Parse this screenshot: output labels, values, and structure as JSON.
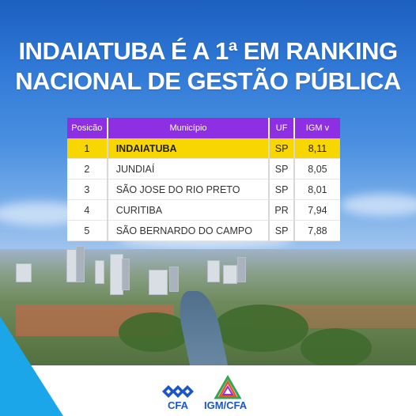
{
  "headline": {
    "line1": "INDAIATUBA É A 1ª EM RANKING",
    "line2": "NACIONAL DE GESTÃO PÚBLICA"
  },
  "table": {
    "headers": {
      "position": "Posicão",
      "municipality": "Município",
      "uf": "UF",
      "igm": "IGM  v"
    },
    "rows": [
      {
        "position": "1",
        "municipality": "INDAIATUBA",
        "uf": "SP",
        "igm": "8,11"
      },
      {
        "position": "2",
        "municipality": "JUNDIAÍ",
        "uf": "SP",
        "igm": "8,05"
      },
      {
        "position": "3",
        "municipality": "SÃO JOSE DO RIO PRETO",
        "uf": "SP",
        "igm": "8,01"
      },
      {
        "position": "4",
        "municipality": "CURITIBA",
        "uf": "PR",
        "igm": "7,94"
      },
      {
        "position": "5",
        "municipality": "SÃO BERNARDO DO CAMPO",
        "uf": "SP",
        "igm": "7,88"
      }
    ]
  },
  "footer": {
    "logo_left_text": "CFA",
    "logo_right_text": "IGM/CFA"
  },
  "colors": {
    "header_purple": "#8f2fe3",
    "highlight_yellow": "#f8d600",
    "brand_blue": "#1b55c6",
    "accent_cyan": "#1aa6e8"
  }
}
